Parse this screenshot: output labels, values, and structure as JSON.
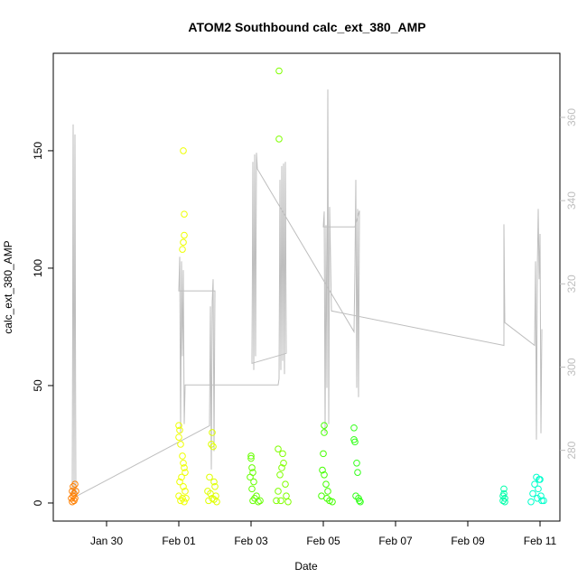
{
  "chart_data": {
    "type": "scatter",
    "title": "ATOM2 Southbound calc_ext_380_AMP",
    "x_label": "Date",
    "y_label": "calc_ext_380_AMP",
    "xlim": [
      "Jan 28 12:36",
      "Feb 11 13:12"
    ],
    "xticks": [
      "Jan 30",
      "Feb 01",
      "Feb 03",
      "Feb 05",
      "Feb 07",
      "Feb 09",
      "Feb 11"
    ],
    "ylim": [
      -7.7,
      191.5
    ],
    "yticks": [
      0,
      50,
      100,
      150
    ],
    "y2lim": [
      263,
      375.4
    ],
    "y2ticks": [
      280,
      300,
      320,
      340,
      360
    ],
    "y2color": "#bebebe",
    "series": [
      {
        "type": "line",
        "color": "#bebebe",
        "axis": "y2",
        "x": [
          "Jan 29 01:12",
          "Jan 29 01:48",
          "Jan 29 02:24",
          "Jan 29 03:00",
          "Jan 29 03:36",
          "Feb 01 20:24",
          "Feb 01 21:00",
          "Feb 01 21:36",
          "Feb 01 22:12",
          "Feb 01 22:48",
          "Feb 01 23:24",
          "Feb 02 00:00",
          "Feb 01 00:00",
          "Feb 01 00:36",
          "Feb 01 01:12",
          "Feb 01 01:48",
          "Feb 01 02:24",
          "Feb 01 03:00",
          "Feb 01 03:36",
          "Feb 01 04:12",
          "Feb 03 18:00",
          "Feb 03 18:36",
          "Feb 03 19:12",
          "Feb 03 19:48",
          "Feb 03 20:24",
          "Feb 03 21:00",
          "Feb 03 21:36",
          "Feb 03 22:12",
          "Feb 03 22:48",
          "Feb 03 23:24",
          "Feb 03 00:36",
          "Feb 03 01:12",
          "Feb 03 01:48",
          "Feb 03 02:24",
          "Feb 03 03:00",
          "Feb 03 03:36",
          "Feb 03 04:12",
          "Feb 05 20:24",
          "Feb 05 21:00",
          "Feb 05 21:36",
          "Feb 05 22:12",
          "Feb 05 22:48",
          "Feb 05 23:24",
          "Feb 06 00:00",
          "Feb 05 21:00",
          "Feb 05 00:00",
          "Feb 05 00:36",
          "Feb 05 01:12",
          "Feb 05 01:48",
          "Feb 05 02:24",
          "Feb 05 03:00",
          "Feb 05 03:36",
          "Feb 05 04:12",
          "Feb 05 05:24",
          "Feb 10 00:00",
          "Feb 10 00:00",
          "Feb 10 00:36",
          "Feb 10 20:24",
          "Feb 10 21:00",
          "Feb 10 21:36",
          "Feb 10 22:12",
          "Feb 10 22:48",
          "Feb 10 23:24",
          "Feb 11 00:00",
          "Feb 11 00:36",
          "Feb 11 01:12"
        ],
        "values": [
          269.3,
          358.3,
          270.0,
          355.9,
          268.9,
          285.9,
          314.6,
          275.4,
          315.7,
          321.1,
          279.8,
          318.3,
          318.3,
          326.5,
          284.1,
          325.4,
          302.6,
          323.3,
          286.3,
          295.7,
          295.7,
          297.2,
          345.0,
          299.3,
          348.3,
          301.5,
          348.9,
          298.3,
          349.3,
          303.3,
          300.9,
          349.3,
          299.3,
          351.1,
          302.6,
          351.5,
          347.6,
          308.5,
          323.3,
          345.0,
          295.0,
          338.0,
          292.8,
          337.6,
          333.7,
          333.7,
          337.4,
          284.1,
          334.1,
          295.0,
          366.7,
          286.3,
          338.5,
          313.5,
          305.2,
          334.3,
          310.7,
          305.2,
          325.4,
          282.6,
          323.3,
          338.0,
          321.1,
          332.0,
          284.1,
          309.1
        ]
      },
      {
        "color": "#ff7f00",
        "x": [
          "Jan 29 00:36",
          "Jan 29 01:12",
          "Jan 29 01:12",
          "Jan 29 01:48",
          "Jan 29 01:48",
          "Jan 29 02:24",
          "Jan 29 02:24",
          "Jan 29 03:00",
          "Jan 29 03:00",
          "Jan 29 03:36"
        ],
        "values": [
          2,
          5,
          0.5,
          7,
          3,
          4,
          1,
          8,
          2,
          5
        ]
      },
      {
        "color": "#eeff00",
        "x": [
          "Feb 01 03:00",
          "Feb 01 03:36",
          "Feb 01 03:36",
          "Feb 01 03:00",
          "Feb 01 02:24",
          "Feb 01 00:00",
          "Feb 01 00:36",
          "Feb 01 00:00",
          "Feb 01 01:12",
          "Feb 01 02:24",
          "Feb 01 03:00",
          "Feb 01 03:36",
          "Feb 01 04:12",
          "Feb 01 01:48",
          "Feb 01 00:36",
          "Feb 01 03:00",
          "Feb 01 04:12",
          "Feb 01 00:00",
          "Feb 01 02:24",
          "Feb 01 01:12",
          "Feb 01 03:36",
          "Feb 01 04:48"
        ],
        "values": [
          150,
          123,
          114,
          111,
          108,
          33,
          31,
          28,
          25,
          20,
          17,
          15,
          13,
          11,
          9,
          7,
          5,
          3,
          2,
          1,
          0.5,
          2
        ]
      },
      {
        "color": "#dfff00",
        "x": [
          "Feb 01 22:12",
          "Feb 01 21:36",
          "Feb 01 22:48",
          "Feb 01 20:24",
          "Feb 01 23:24",
          "Feb 02 00:00",
          "Feb 01 19:12",
          "Feb 01 21:00",
          "Feb 02 00:36",
          "Feb 01 22:12",
          "Feb 01 19:48",
          "Feb 02 01:12",
          "Feb 01 23:24"
        ],
        "values": [
          30,
          25,
          24,
          11,
          9,
          7,
          5,
          4,
          3,
          2,
          1,
          0.5,
          1.5
        ]
      },
      {
        "color": "#66ff00",
        "x": [
          "Feb 03 00:00",
          "Feb 03 00:00",
          "Feb 03 00:36",
          "Feb 03 01:12",
          "Feb 02 23:24",
          "Feb 03 01:48",
          "Feb 03 00:36",
          "Feb 03 03:36",
          "Feb 03 02:24",
          "Feb 03 01:12",
          "Feb 03 04:48",
          "Feb 03 06:00"
        ],
        "values": [
          20,
          19,
          15,
          13,
          11,
          9,
          6,
          3,
          2,
          1,
          0.5,
          1
        ]
      },
      {
        "color": "#80ff00",
        "x": [
          "Feb 03 18:36",
          "Feb 03 18:36",
          "Feb 03 18:00",
          "Feb 03 21:00",
          "Feb 03 21:36",
          "Feb 03 20:24",
          "Feb 03 19:12",
          "Feb 03 22:48",
          "Feb 03 18:00",
          "Feb 03 23:24",
          "Feb 03 19:48",
          "Feb 04 00:36",
          "Feb 03 16:48"
        ],
        "values": [
          184,
          155,
          23,
          21,
          17,
          15,
          12,
          8,
          5,
          3,
          1,
          0.5,
          1
        ]
      },
      {
        "color": "#44ff00",
        "x": [
          "Feb 05 00:36",
          "Feb 05 00:36",
          "Feb 05 00:00",
          "Feb 04 23:24",
          "Feb 05 00:36",
          "Feb 05 01:48",
          "Feb 05 03:00",
          "Feb 04 22:48",
          "Feb 05 02:24",
          "Feb 05 04:12",
          "Feb 05 06:00"
        ],
        "values": [
          33,
          30,
          21,
          14,
          12,
          8,
          5,
          3,
          2,
          1,
          0.5
        ]
      },
      {
        "color": "#33ff1a",
        "x": [
          "Feb 05 20:24",
          "Feb 05 20:24",
          "Feb 05 21:00",
          "Feb 05 22:12",
          "Feb 05 22:48",
          "Feb 05 21:36",
          "Feb 05 23:24",
          "Feb 06 00:00",
          "Feb 06 00:36"
        ],
        "values": [
          32,
          27,
          26,
          17,
          13,
          3,
          2,
          1,
          0.5
        ]
      },
      {
        "color": "#00ffaa",
        "x": [
          "Feb 10 00:00",
          "Feb 10 00:00",
          "Feb 09 23:24",
          "Feb 10 00:36",
          "Feb 09 23:24",
          "Feb 10 00:36"
        ],
        "values": [
          6,
          4,
          3,
          2,
          1,
          0.5
        ]
      },
      {
        "color": "#00ffcc",
        "x": [
          "Feb 10 21:36",
          "Feb 10 23:24",
          "Feb 11 00:00",
          "Feb 10 20:24",
          "Feb 10 22:48",
          "Feb 10 19:12",
          "Feb 11 00:36",
          "Feb 10 22:12",
          "Feb 11 01:12",
          "Feb 10 18:00",
          "Feb 11 02:24"
        ],
        "values": [
          11,
          10,
          10,
          8,
          6,
          4,
          3,
          2,
          1,
          0.5,
          1
        ]
      }
    ]
  }
}
